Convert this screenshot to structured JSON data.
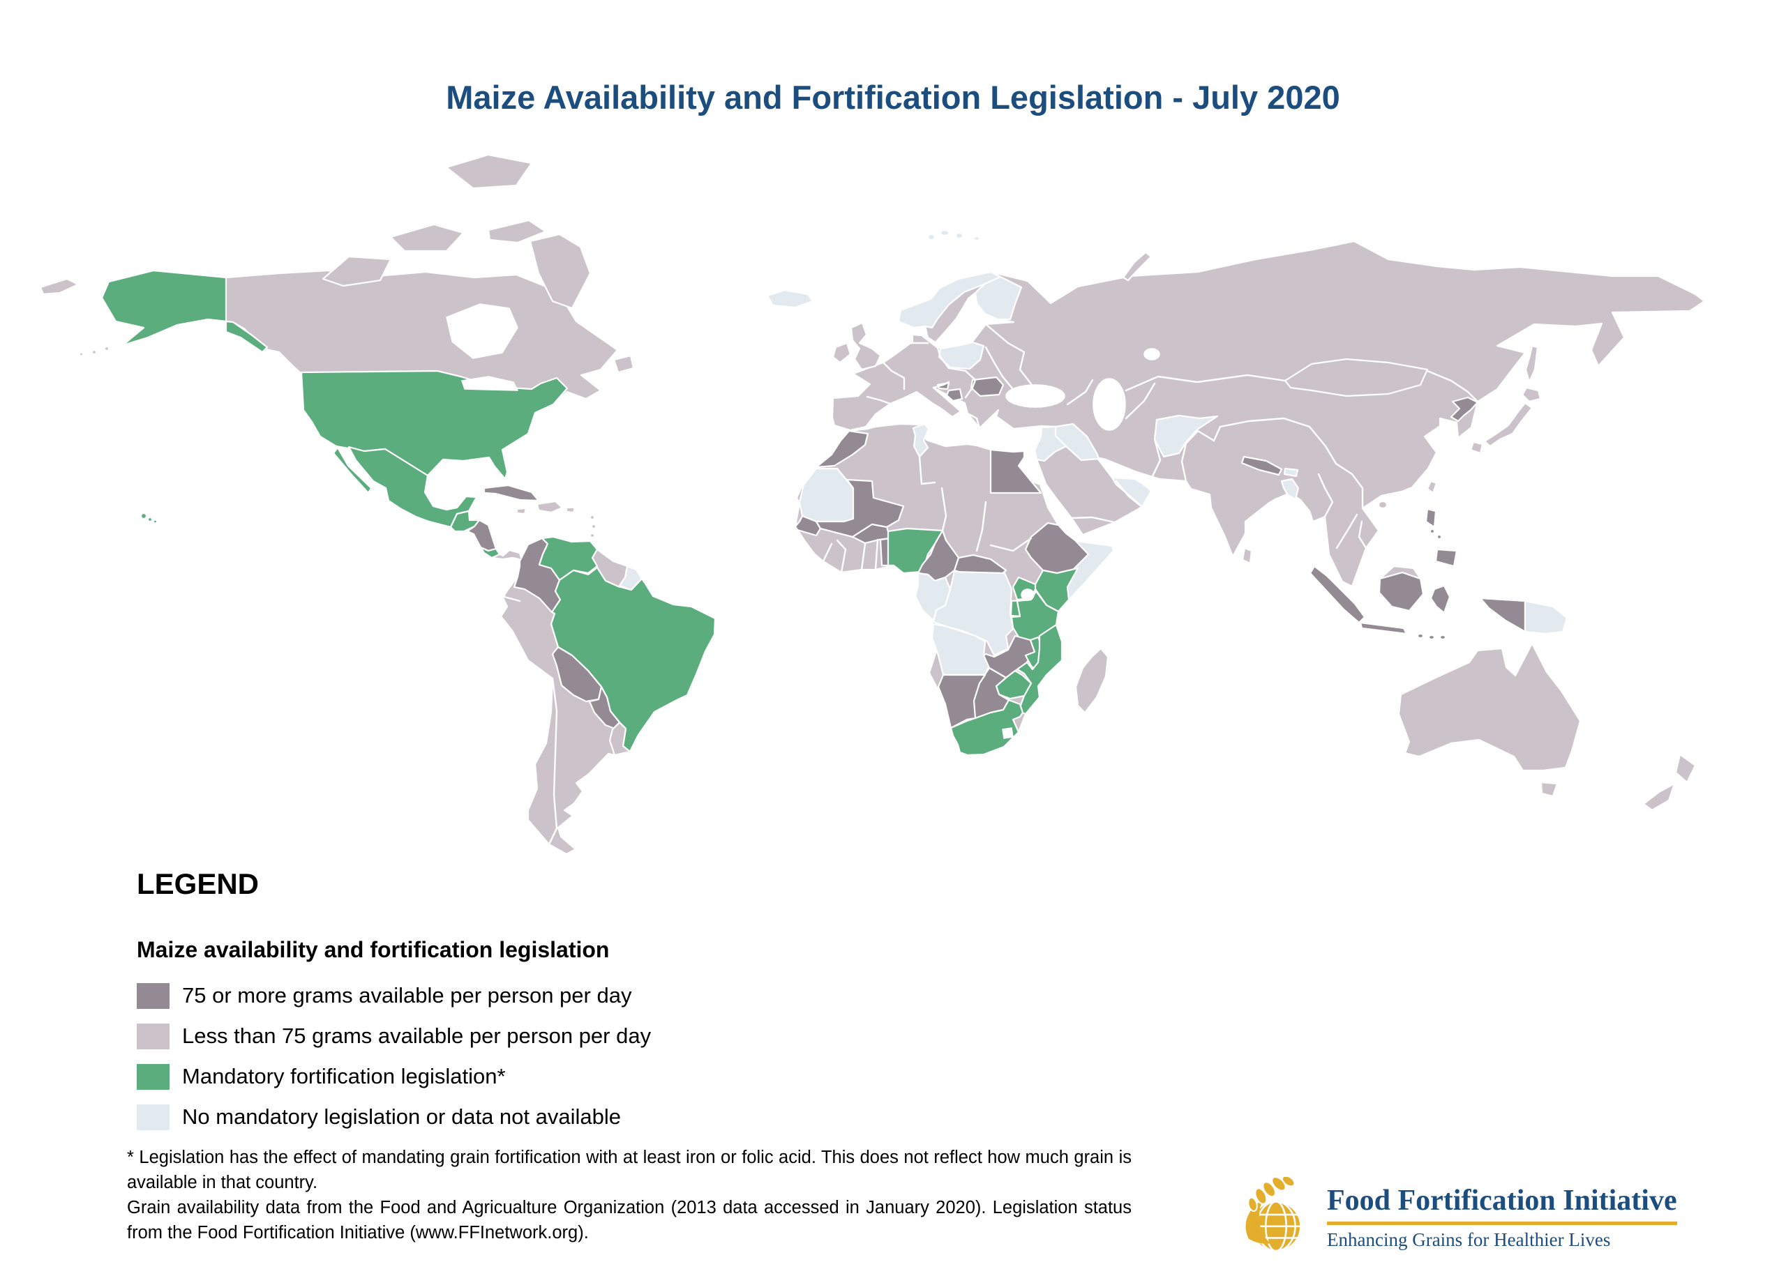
{
  "title": "Maize Availability and Fortification Legislation - July 2020",
  "title_color": "#1b4d7e",
  "legend": {
    "heading": "LEGEND",
    "subtitle": "Maize availability and fortification legislation",
    "items": [
      {
        "key": "high",
        "label": "75 or more grams available per person per day",
        "color": "#938a93"
      },
      {
        "key": "low",
        "label": "Less than 75 grams available per person per day",
        "color": "#cbc3c9"
      },
      {
        "key": "mandatory",
        "label": "Mandatory fortification legislation*",
        "color": "#5cad7d"
      },
      {
        "key": "none",
        "label": "No mandatory legislation or data not available",
        "color": "#e2e9ef"
      }
    ]
  },
  "footnotes": {
    "para1": "* Legislation has the effect of mandating grain fortification with at least iron or folic acid. This does not reflect how much grain is available in that country.",
    "para2": "Grain availability data from the Food and Agricualture Organization (2013 data accessed in January 2020). Legislation status from the Food Fortification Initiative (www.FFInetwork.org)."
  },
  "logo": {
    "name": "Food Fortification Initiative",
    "tagline": "Enhancing Grains for Healthier Lives",
    "text_color": "#1b4d7e",
    "accent_color": "#e3ae2c"
  },
  "map": {
    "ocean_color": "#ffffff",
    "border_color": "#ffffff",
    "water_color": "#ffffff",
    "regions": [
      {
        "id": "north-america",
        "category": "low"
      },
      {
        "id": "arctic-1",
        "category": "low"
      },
      {
        "id": "arctic-2",
        "category": "low"
      },
      {
        "id": "arctic-3",
        "category": "low"
      },
      {
        "id": "arctic-4",
        "category": "low"
      },
      {
        "id": "arctic-5",
        "category": "low"
      },
      {
        "id": "newfoundland",
        "category": "low"
      },
      {
        "id": "aleutians",
        "category": "low"
      },
      {
        "id": "bering-fragment",
        "category": "low"
      },
      {
        "id": "south-america",
        "category": "low"
      },
      {
        "id": "africa",
        "category": "low"
      },
      {
        "id": "madagascar",
        "category": "low"
      },
      {
        "id": "eurasia",
        "category": "low"
      },
      {
        "id": "uk",
        "category": "low"
      },
      {
        "id": "ireland",
        "category": "low"
      },
      {
        "id": "novaya-zemlya",
        "category": "low"
      },
      {
        "id": "sakhalin",
        "category": "low"
      },
      {
        "id": "japan",
        "category": "low"
      },
      {
        "id": "sri-lanka",
        "category": "low"
      },
      {
        "id": "taiwan",
        "category": "low"
      },
      {
        "id": "hainan",
        "category": "low"
      },
      {
        "id": "australia",
        "category": "low"
      },
      {
        "id": "tasmania",
        "category": "low"
      },
      {
        "id": "new-zealand",
        "category": "low"
      },
      {
        "id": "iceland",
        "category": "none"
      },
      {
        "id": "svalbard",
        "category": "none"
      },
      {
        "id": "alaska",
        "category": "mandatory"
      },
      {
        "id": "usa",
        "category": "mandatory"
      },
      {
        "id": "baja-california",
        "category": "mandatory"
      },
      {
        "id": "hawaii",
        "category": "mandatory"
      },
      {
        "id": "mexico",
        "category": "mandatory"
      },
      {
        "id": "guatemala-belize",
        "category": "mandatory"
      },
      {
        "id": "honduras-nicaragua",
        "category": "high"
      },
      {
        "id": "costa-rica",
        "category": "mandatory"
      },
      {
        "id": "cuba",
        "category": "high"
      },
      {
        "id": "jamaica",
        "category": "low"
      },
      {
        "id": "hispaniola",
        "category": "low"
      },
      {
        "id": "puerto-rico",
        "category": "low"
      },
      {
        "id": "antilles",
        "category": "low"
      },
      {
        "id": "colombia",
        "category": "high"
      },
      {
        "id": "venezuela",
        "category": "mandatory"
      },
      {
        "id": "french-guiana",
        "category": "none"
      },
      {
        "id": "brazil",
        "category": "mandatory"
      },
      {
        "id": "bolivia",
        "category": "high"
      },
      {
        "id": "paraguay",
        "category": "high"
      },
      {
        "id": "uruguay",
        "category": "low"
      },
      {
        "id": "morocco",
        "category": "high"
      },
      {
        "id": "tunisia",
        "category": "none"
      },
      {
        "id": "egypt",
        "category": "high"
      },
      {
        "id": "mauritania",
        "category": "none"
      },
      {
        "id": "senegal",
        "category": "high"
      },
      {
        "id": "mali",
        "category": "high"
      },
      {
        "id": "burkina-faso",
        "category": "high"
      },
      {
        "id": "benin",
        "category": "high"
      },
      {
        "id": "nigeria",
        "category": "mandatory"
      },
      {
        "id": "cameroon",
        "category": "high"
      },
      {
        "id": "central-african-republic",
        "category": "high"
      },
      {
        "id": "ethiopia",
        "category": "high"
      },
      {
        "id": "somalia",
        "category": "none"
      },
      {
        "id": "kenya",
        "category": "mandatory"
      },
      {
        "id": "uganda",
        "category": "mandatory"
      },
      {
        "id": "rwanda-burundi",
        "category": "mandatory"
      },
      {
        "id": "tanzania",
        "category": "mandatory"
      },
      {
        "id": "dr-congo",
        "category": "none"
      },
      {
        "id": "congo-gabon",
        "category": "none"
      },
      {
        "id": "angola",
        "category": "none"
      },
      {
        "id": "zambia",
        "category": "high"
      },
      {
        "id": "malawi",
        "category": "mandatory"
      },
      {
        "id": "mozambique",
        "category": "mandatory"
      },
      {
        "id": "zimbabwe",
        "category": "mandatory"
      },
      {
        "id": "botswana",
        "category": "high"
      },
      {
        "id": "namibia",
        "category": "high"
      },
      {
        "id": "south-africa",
        "category": "mandatory"
      },
      {
        "id": "norway",
        "category": "none"
      },
      {
        "id": "finland",
        "category": "none"
      },
      {
        "id": "poland",
        "category": "none"
      },
      {
        "id": "slovenia",
        "category": "high"
      },
      {
        "id": "bosnia",
        "category": "high"
      },
      {
        "id": "romania",
        "category": "high"
      },
      {
        "id": "levant",
        "category": "none"
      },
      {
        "id": "iraq",
        "category": "none"
      },
      {
        "id": "oman-uae",
        "category": "none"
      },
      {
        "id": "afghanistan",
        "category": "none"
      },
      {
        "id": "mongolia",
        "category": "low"
      },
      {
        "id": "nepal",
        "category": "high"
      },
      {
        "id": "bhutan",
        "category": "none"
      },
      {
        "id": "bangladesh",
        "category": "none"
      },
      {
        "id": "north-korea",
        "category": "high"
      },
      {
        "id": "philippines",
        "category": "high"
      },
      {
        "id": "sumatra",
        "category": "high"
      },
      {
        "id": "java",
        "category": "high"
      },
      {
        "id": "borneo-kalimantan",
        "category": "high"
      },
      {
        "id": "malaysia-borneo",
        "category": "low"
      },
      {
        "id": "sulawesi",
        "category": "high"
      },
      {
        "id": "lesser-sunda",
        "category": "high"
      },
      {
        "id": "papua-indonesia",
        "category": "high"
      },
      {
        "id": "papua-new-guinea",
        "category": "none"
      },
      {
        "id": "hudson-bay",
        "category": "water"
      },
      {
        "id": "great-lakes",
        "category": "water"
      },
      {
        "id": "black-sea",
        "category": "water"
      },
      {
        "id": "caspian-sea",
        "category": "water"
      },
      {
        "id": "aral-sea",
        "category": "water"
      },
      {
        "id": "lake-victoria",
        "category": "water"
      },
      {
        "id": "lesotho",
        "category": "water"
      }
    ]
  }
}
